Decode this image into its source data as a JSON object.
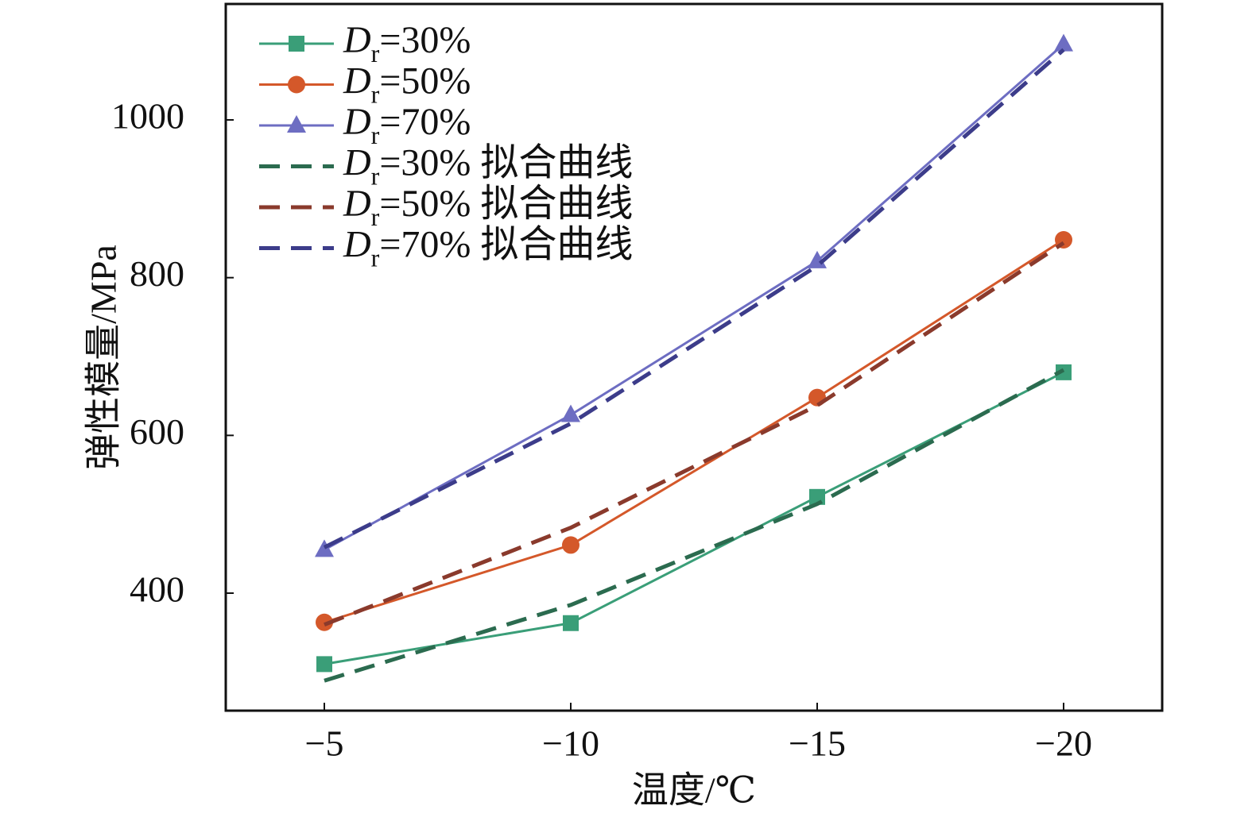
{
  "chart_data": {
    "type": "line",
    "x_label": "温度/℃",
    "y_label": "弹性模量/MPa",
    "x": [
      -5,
      -10,
      -15,
      -20
    ],
    "xlim": [
      -3,
      -22
    ],
    "xticks": [
      {
        "value": -5,
        "label": "−5"
      },
      {
        "value": -10,
        "label": "−10"
      },
      {
        "value": -15,
        "label": "−15"
      },
      {
        "value": -20,
        "label": "−20"
      }
    ],
    "ylim": [
      251,
      1147
    ],
    "yticks": [
      400,
      600,
      800,
      1000
    ],
    "series": [
      {
        "name": "Dr=30%",
        "color": "#3a9e78",
        "marker": "square",
        "dashed": false,
        "values": [
          310,
          362,
          522,
          680
        ]
      },
      {
        "name": "Dr=50%",
        "color": "#d4582a",
        "marker": "circle",
        "dashed": false,
        "values": [
          363,
          461,
          648,
          848
        ]
      },
      {
        "name": "Dr=70%",
        "color": "#6d6dc2",
        "marker": "triangle",
        "dashed": false,
        "values": [
          455,
          626,
          821,
          1096
        ]
      },
      {
        "name": "Dr=30% 拟合曲线",
        "color": "#2b6b4f",
        "marker": null,
        "dashed": true,
        "values": [
          289,
          385,
          513,
          683
        ]
      },
      {
        "name": "Dr=50% 拟合曲线",
        "color": "#8a3a2c",
        "marker": null,
        "dashed": true,
        "values": [
          360,
          483,
          638,
          844
        ]
      },
      {
        "name": "Dr=70% 拟合曲线",
        "color": "#3c3c8a",
        "marker": null,
        "dashed": true,
        "values": [
          458,
          615,
          815,
          1089
        ]
      }
    ]
  }
}
